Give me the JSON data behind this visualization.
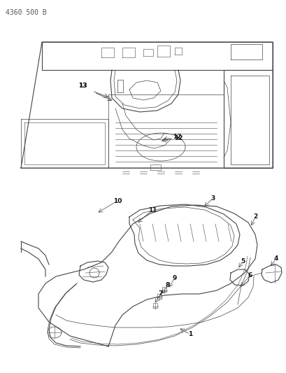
{
  "title": "4360 500 B",
  "bg_color": "#ffffff",
  "line_color": "#444444",
  "bold_label_color": "#111111",
  "figsize": [
    4.1,
    5.33
  ],
  "dpi": 100
}
